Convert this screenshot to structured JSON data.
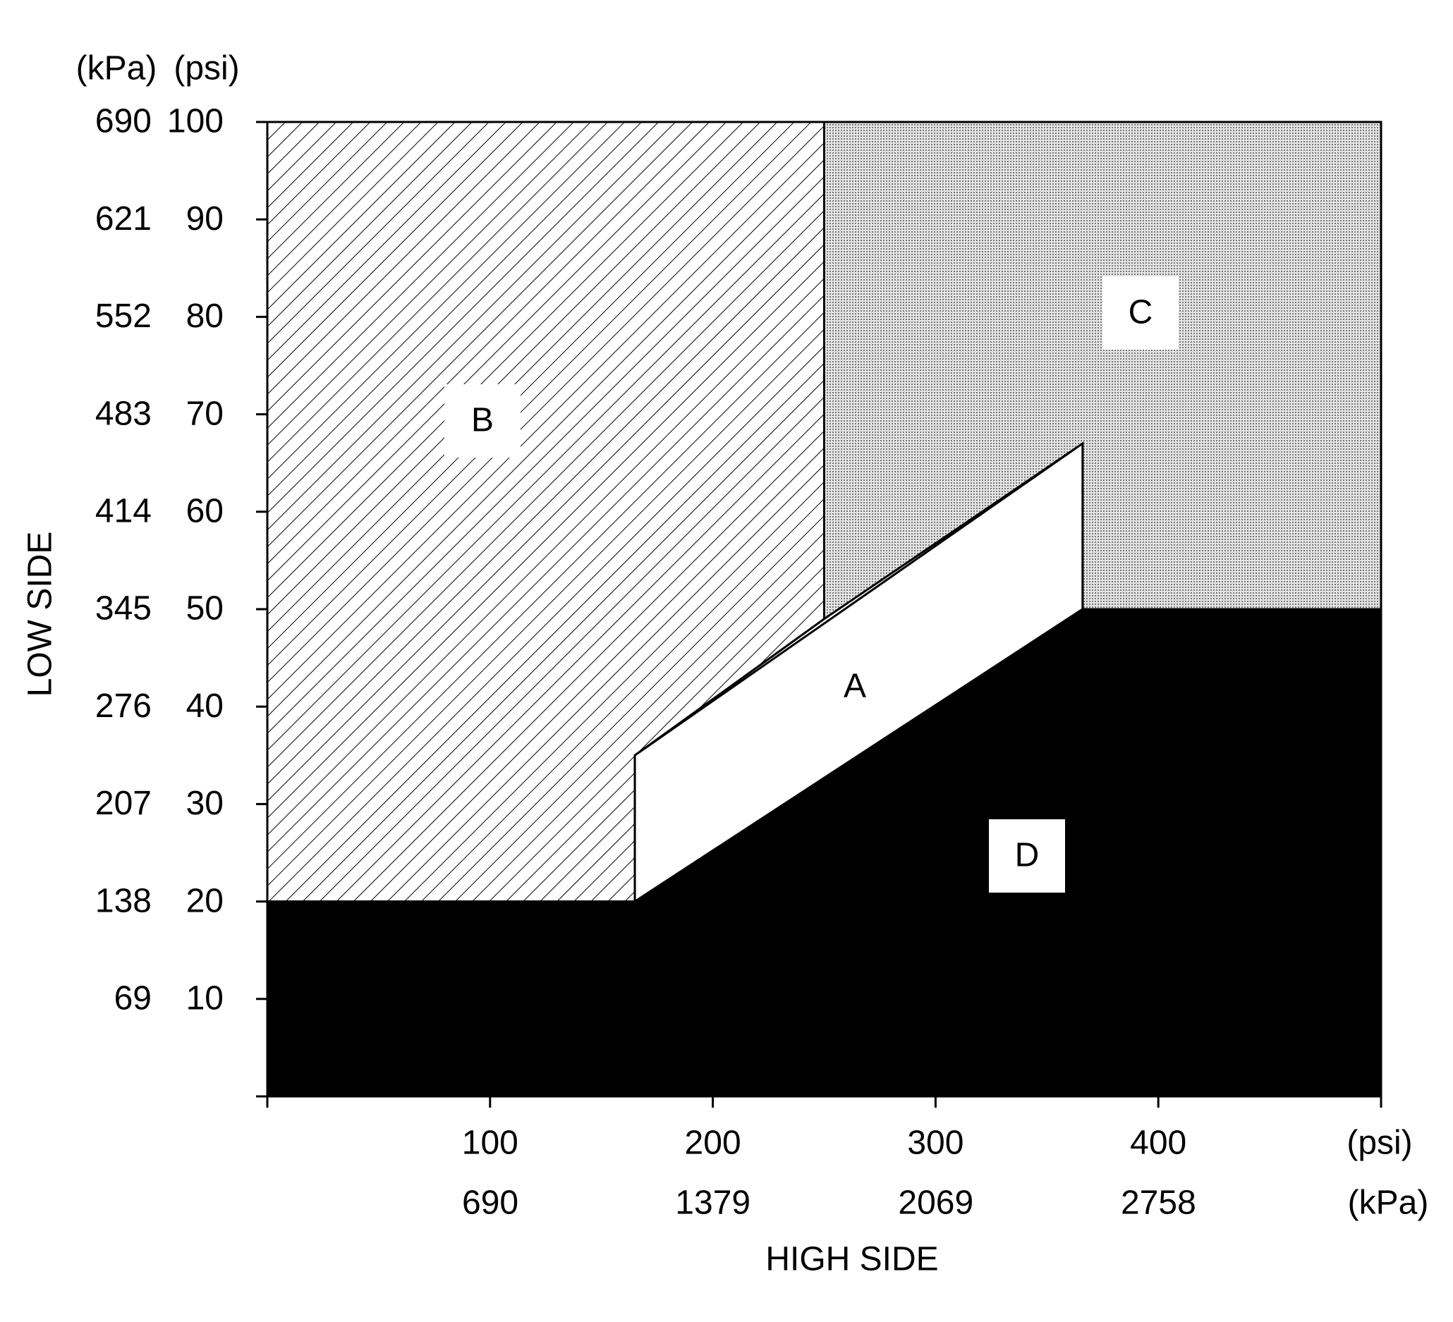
{
  "chart_data": {
    "type": "region",
    "ylabel_units": [
      "(kPa)",
      "(psi)"
    ],
    "ylabel": "LOW SIDE",
    "xlabel": "HIGH SIDE",
    "xlabel_units": [
      "(psi)",
      "(kPa)"
    ],
    "xlim": [
      0,
      500
    ],
    "xticks": [
      100,
      200,
      300,
      400
    ],
    "x2lim": [
      0,
      3447
    ],
    "x2ticks": [
      690,
      1379,
      2069,
      2758
    ],
    "ylim": [
      0,
      100
    ],
    "yticks": [
      10,
      20,
      30,
      40,
      50,
      60,
      70,
      80,
      90,
      100
    ],
    "y2lim": [
      0,
      690
    ],
    "y2ticks": [
      69,
      138,
      207,
      276,
      345,
      414,
      483,
      552,
      621,
      690
    ],
    "regions": [
      {
        "name": "B",
        "fill": "hatch",
        "x": [
          0,
          0,
          250,
          250,
          165,
          165
        ],
        "y": [
          20,
          100,
          100,
          49,
          35,
          20
        ]
      },
      {
        "name": "C",
        "fill": "stipple",
        "x": [
          250,
          500,
          500,
          366,
          366,
          250
        ],
        "y": [
          100,
          100,
          50,
          50,
          67,
          49
        ]
      },
      {
        "name": "A",
        "fill": "white",
        "x": [
          165,
          165,
          366,
          366
        ],
        "y": [
          20,
          35,
          67,
          50
        ]
      },
      {
        "name": "D",
        "fill": "black",
        "x": [
          0,
          500,
          500,
          366,
          165,
          0
        ],
        "y": [
          0,
          0,
          50,
          50,
          20,
          20
        ]
      }
    ]
  }
}
